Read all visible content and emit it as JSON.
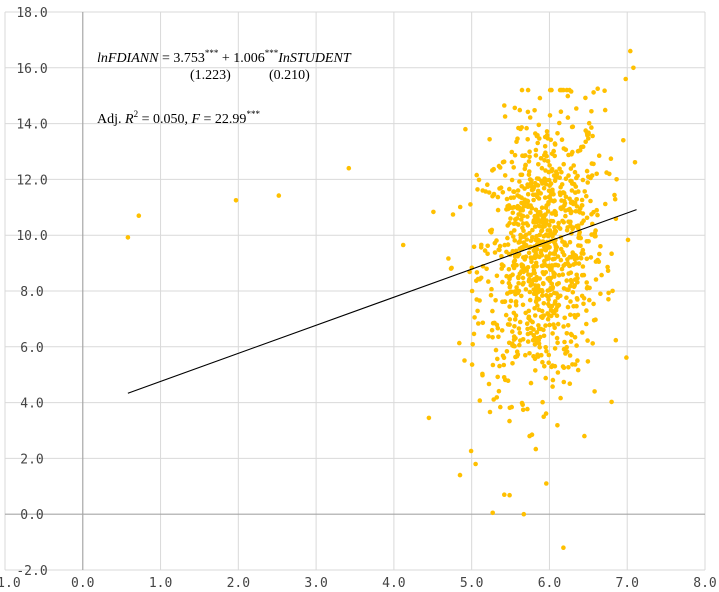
{
  "chart_data": {
    "type": "scatter",
    "title": "",
    "xlabel": "",
    "ylabel": "",
    "xlim": [
      -1.0,
      8.0
    ],
    "ylim": [
      -2.0,
      18.0
    ],
    "x_ticks": [
      "-1.0",
      "0.0",
      "1.0",
      "2.0",
      "3.0",
      "4.0",
      "5.0",
      "6.0",
      "7.0",
      "8.0"
    ],
    "y_ticks": [
      "18.0",
      "16.0",
      "14.0",
      "12.0",
      "10.0",
      "8.0",
      "6.0",
      "4.0",
      "2.0",
      "0.0",
      "-2.0"
    ],
    "grid": "vertical and horizontal gridlines, light gray",
    "point_color": "#FFC000",
    "fit_line_color": "#000000",
    "series": [
      {
        "notable_points": [
          [
            0.58,
            9.92
          ],
          [
            0.72,
            10.7
          ],
          [
            1.97,
            11.25
          ],
          [
            2.52,
            11.42
          ],
          [
            3.42,
            12.4
          ],
          [
            4.12,
            9.65
          ],
          [
            4.45,
            3.45
          ],
          [
            4.85,
            1.4
          ],
          [
            5.05,
            1.8
          ],
          [
            5.27,
            0.05
          ],
          [
            5.42,
            0.7
          ],
          [
            5.96,
            1.1
          ],
          [
            6.18,
            -1.2
          ],
          [
            7.04,
            16.6
          ],
          [
            7.08,
            16.0
          ],
          [
            6.98,
            15.6
          ],
          [
            6.62,
            15.25
          ],
          [
            6.18,
            15.2
          ],
          [
            5.42,
            14.65
          ],
          [
            4.92,
            13.8
          ],
          [
            6.58,
            4.4
          ],
          [
            6.45,
            2.8
          ]
        ],
        "cluster": {
          "description": "dense cloud of roughly 1000 points",
          "x_center": 5.9,
          "x_sd": 0.4,
          "y_center": 9.4,
          "y_sd": 2.45,
          "x_range": [
            4.4,
            7.1
          ],
          "y_range": [
            0.0,
            15.2
          ],
          "n_points": 1000
        }
      }
    ],
    "fit_line": {
      "x_start": 0.58,
      "x_end": 7.12,
      "intercept": 3.753,
      "slope": 1.006
    }
  },
  "annotations": {
    "eq_lhs": "lnFDIANN",
    "eq_eq": "=",
    "eq_const": "3.753",
    "eq_stars1": "***",
    "eq_plus": "+",
    "eq_coef": "1.006",
    "eq_stars2": "***",
    "eq_var": "InSTUDENT",
    "se_const": "(1.223)",
    "se_coef": "(0.210)",
    "stats_prefix": "Adj.",
    "r2_symbol": "R",
    "r2_exp": "2",
    "r2_value": "= 0.050,",
    "f_symbol": "F",
    "f_value": "= 22.99",
    "f_stars": "***"
  }
}
